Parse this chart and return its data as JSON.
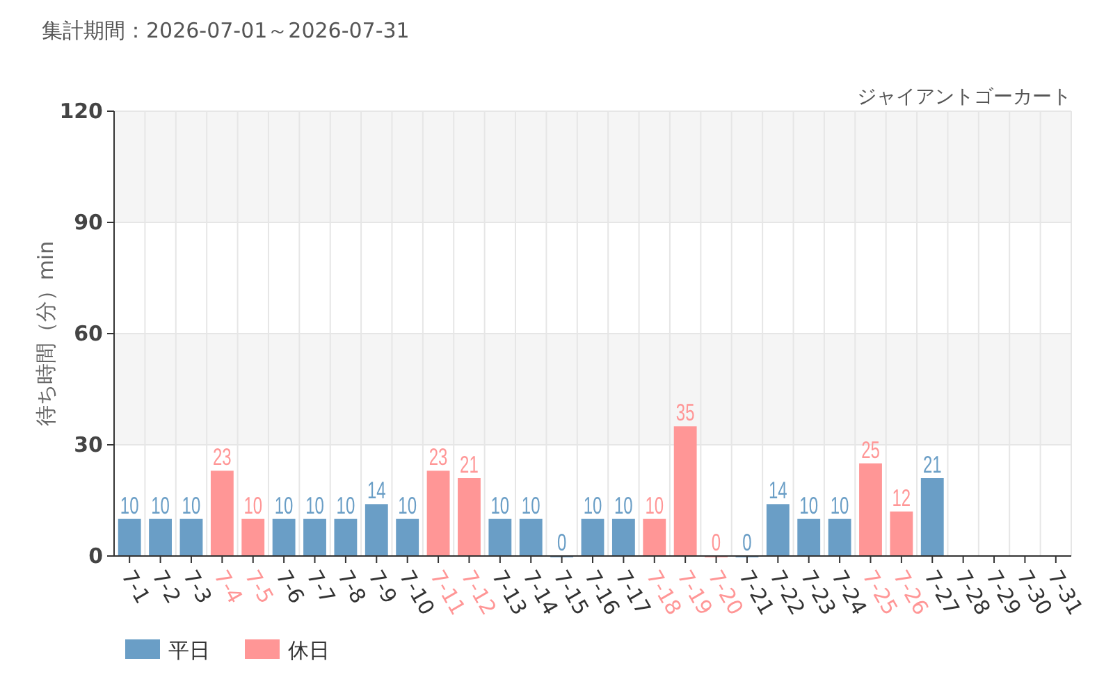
{
  "chart_data": {
    "type": "bar",
    "title": "集計期間：2026-07-01～2026-07-31",
    "subtitle": "ジャイアントゴーカート",
    "ylabel": "待ち時間（分）min",
    "categories": [
      "7-1",
      "7-2",
      "7-3",
      "7-4",
      "7-5",
      "7-6",
      "7-7",
      "7-8",
      "7-9",
      "7-10",
      "7-11",
      "7-12",
      "7-13",
      "7-14",
      "7-15",
      "7-16",
      "7-17",
      "7-18",
      "7-19",
      "7-20",
      "7-21",
      "7-22",
      "7-23",
      "7-24",
      "7-25",
      "7-26",
      "7-27",
      "7-28",
      "7-29",
      "7-30",
      "7-31"
    ],
    "series": [
      {
        "name": "平日",
        "color": "#6a9ec6",
        "values": [
          10,
          10,
          10,
          null,
          null,
          10,
          10,
          10,
          14,
          10,
          null,
          null,
          10,
          10,
          0,
          10,
          10,
          null,
          null,
          null,
          0,
          14,
          10,
          10,
          null,
          null,
          21,
          null,
          null,
          null,
          null
        ]
      },
      {
        "name": "休日",
        "color": "#ff9696",
        "values": [
          null,
          null,
          null,
          23,
          10,
          null,
          null,
          null,
          null,
          null,
          23,
          21,
          null,
          null,
          null,
          null,
          null,
          10,
          35,
          0,
          null,
          null,
          null,
          null,
          25,
          12,
          null,
          null,
          null,
          null,
          null
        ]
      }
    ],
    "ylim": [
      0,
      120
    ],
    "yticks": [
      0,
      30,
      60,
      90,
      120
    ],
    "grid": true,
    "data_labels": true,
    "legend": "bottom left",
    "bands": [
      {
        "axis": "y",
        "from": 30,
        "to": 60,
        "color": "#f5f5f5"
      },
      {
        "axis": "y",
        "from": 90,
        "to": 120,
        "color": "#f5f5f5"
      }
    ]
  }
}
